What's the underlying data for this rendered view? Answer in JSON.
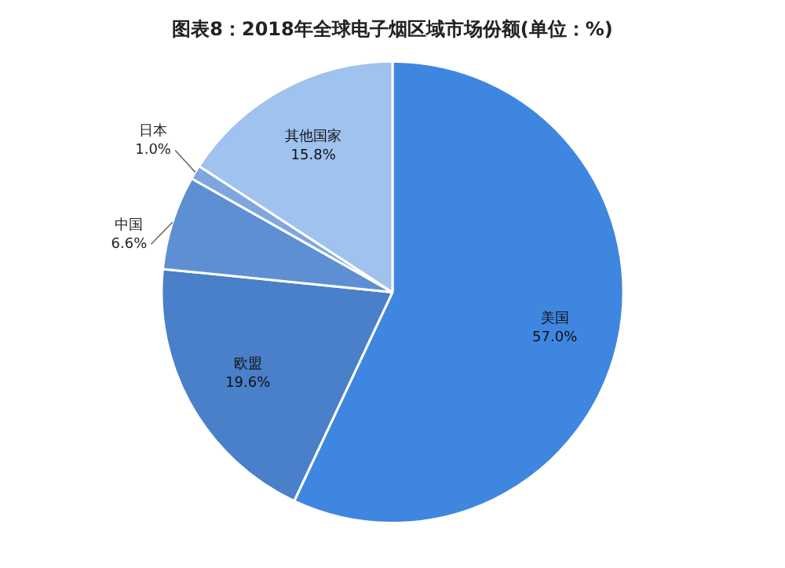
{
  "chart_data": {
    "type": "pie",
    "title": "图表8：2018年全球电子烟区域市场份额(单位：%)",
    "categories": [
      "美国",
      "欧盟",
      "中国",
      "日本",
      "其他国家"
    ],
    "values": [
      57.0,
      19.6,
      6.6,
      1.0,
      15.8
    ],
    "value_labels": [
      "57.0%",
      "19.6%",
      "6.6%",
      "1.0%",
      "15.8%"
    ],
    "colors": [
      "#3f86e0",
      "#4a7fc9",
      "#5f8fd3",
      "#7fa6de",
      "#9fc2ee"
    ],
    "legend": false
  }
}
